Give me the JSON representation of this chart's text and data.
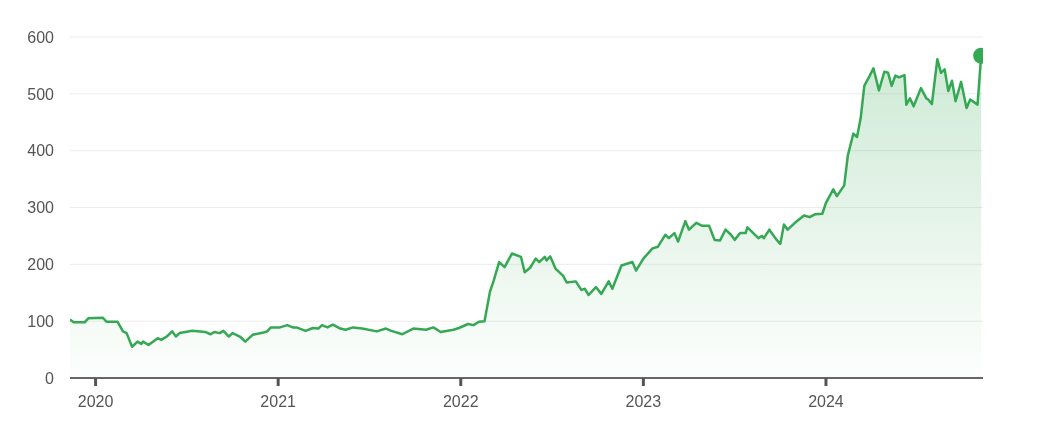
{
  "chart_data": {
    "type": "area",
    "xlim": [
      2019.86,
      2024.86
    ],
    "xticks": [
      2020,
      2021,
      2022,
      2023,
      2024
    ],
    "ylim": [
      0,
      600
    ],
    "yticks": [
      0,
      100,
      200,
      300,
      400,
      500,
      600
    ],
    "grid": "y",
    "series": [
      {
        "color": "#34a853",
        "x": [
          2019.86,
          2019.88,
          2019.94,
          2019.96,
          2020.04,
          2020.06,
          2020.12,
          2020.15,
          2020.17,
          2020.2,
          2020.23,
          2020.25,
          2020.26,
          2020.29,
          2020.34,
          2020.36,
          2020.39,
          2020.42,
          2020.44,
          2020.46,
          2020.53,
          2020.6,
          2020.63,
          2020.65,
          2020.68,
          2020.7,
          2020.73,
          2020.75,
          2020.79,
          2020.82,
          2020.86,
          2020.92,
          2020.94,
          2020.96,
          2021.01,
          2021.05,
          2021.08,
          2021.1,
          2021.15,
          2021.19,
          2021.22,
          2021.24,
          2021.27,
          2021.3,
          2021.34,
          2021.37,
          2021.41,
          2021.46,
          2021.54,
          2021.59,
          2021.62,
          2021.68,
          2021.74,
          2021.81,
          2021.85,
          2021.89,
          2021.96,
          2021.99,
          2022.04,
          2022.07,
          2022.1,
          2022.13,
          2022.16,
          2022.18,
          2022.21,
          2022.24,
          2022.28,
          2022.33,
          2022.35,
          2022.38,
          2022.41,
          2022.43,
          2022.46,
          2022.47,
          2022.49,
          2022.52,
          2022.56,
          2022.58,
          2022.63,
          2022.66,
          2022.68,
          2022.7,
          2022.74,
          2022.77,
          2022.81,
          2022.83,
          2022.88,
          2022.94,
          2022.96,
          2023.0,
          2023.05,
          2023.08,
          2023.12,
          2023.14,
          2023.17,
          2023.19,
          2023.23,
          2023.25,
          2023.29,
          2023.32,
          2023.36,
          2023.39,
          2023.42,
          2023.45,
          2023.48,
          2023.5,
          2023.53,
          2023.56,
          2023.57,
          2023.63,
          2023.65,
          2023.66,
          2023.69,
          2023.73,
          2023.75,
          2023.77,
          2023.79,
          2023.83,
          2023.88,
          2023.91,
          2023.94,
          2023.98,
          2024.0,
          2024.04,
          2024.06,
          2024.1,
          2024.12,
          2024.15,
          2024.17,
          2024.19,
          2024.21,
          2024.24,
          2024.26,
          2024.29,
          2024.32,
          2024.34,
          2024.36,
          2024.38,
          2024.4,
          2024.43,
          2024.44,
          2024.46,
          2024.48,
          2024.52,
          2024.55,
          2024.56,
          2024.58,
          2024.61,
          2024.63,
          2024.65,
          2024.67,
          2024.69,
          2024.71,
          2024.74,
          2024.77,
          2024.79,
          2024.83,
          2024.85
        ],
        "values": [
          103,
          98,
          98,
          105,
          106,
          99,
          99,
          82,
          79,
          55,
          64,
          60,
          64,
          58,
          70,
          67,
          73,
          82,
          73,
          79,
          83,
          81,
          77,
          81,
          79,
          83,
          73,
          79,
          73,
          64,
          76,
          80,
          82,
          89,
          89,
          93,
          89,
          89,
          83,
          88,
          87,
          93,
          89,
          94,
          87,
          85,
          89,
          87,
          82,
          87,
          83,
          77,
          87,
          85,
          89,
          81,
          85,
          88,
          95,
          93,
          99,
          100,
          152,
          171,
          204,
          195,
          219,
          213,
          186,
          194,
          210,
          204,
          213,
          207,
          214,
          192,
          180,
          168,
          170,
          155,
          157,
          146,
          160,
          148,
          170,
          157,
          198,
          204,
          189,
          210,
          228,
          231,
          252,
          246,
          255,
          240,
          276,
          261,
          273,
          268,
          268,
          243,
          242,
          261,
          252,
          243,
          255,
          255,
          265,
          246,
          250,
          246,
          261,
          243,
          236,
          270,
          261,
          273,
          286,
          283,
          288,
          289,
          308,
          332,
          320,
          339,
          392,
          430,
          424,
          457,
          514,
          532,
          545,
          506,
          539,
          537,
          514,
          532,
          529,
          533,
          481,
          492,
          478,
          510,
          492,
          490,
          482,
          561,
          537,
          543,
          505,
          523,
          487,
          521,
          475,
          490,
          481,
          567
        ]
      },
      {
        "type": "scatter",
        "color": "#34a853",
        "x": [
          2024.85
        ],
        "values": [
          567
        ]
      }
    ]
  }
}
